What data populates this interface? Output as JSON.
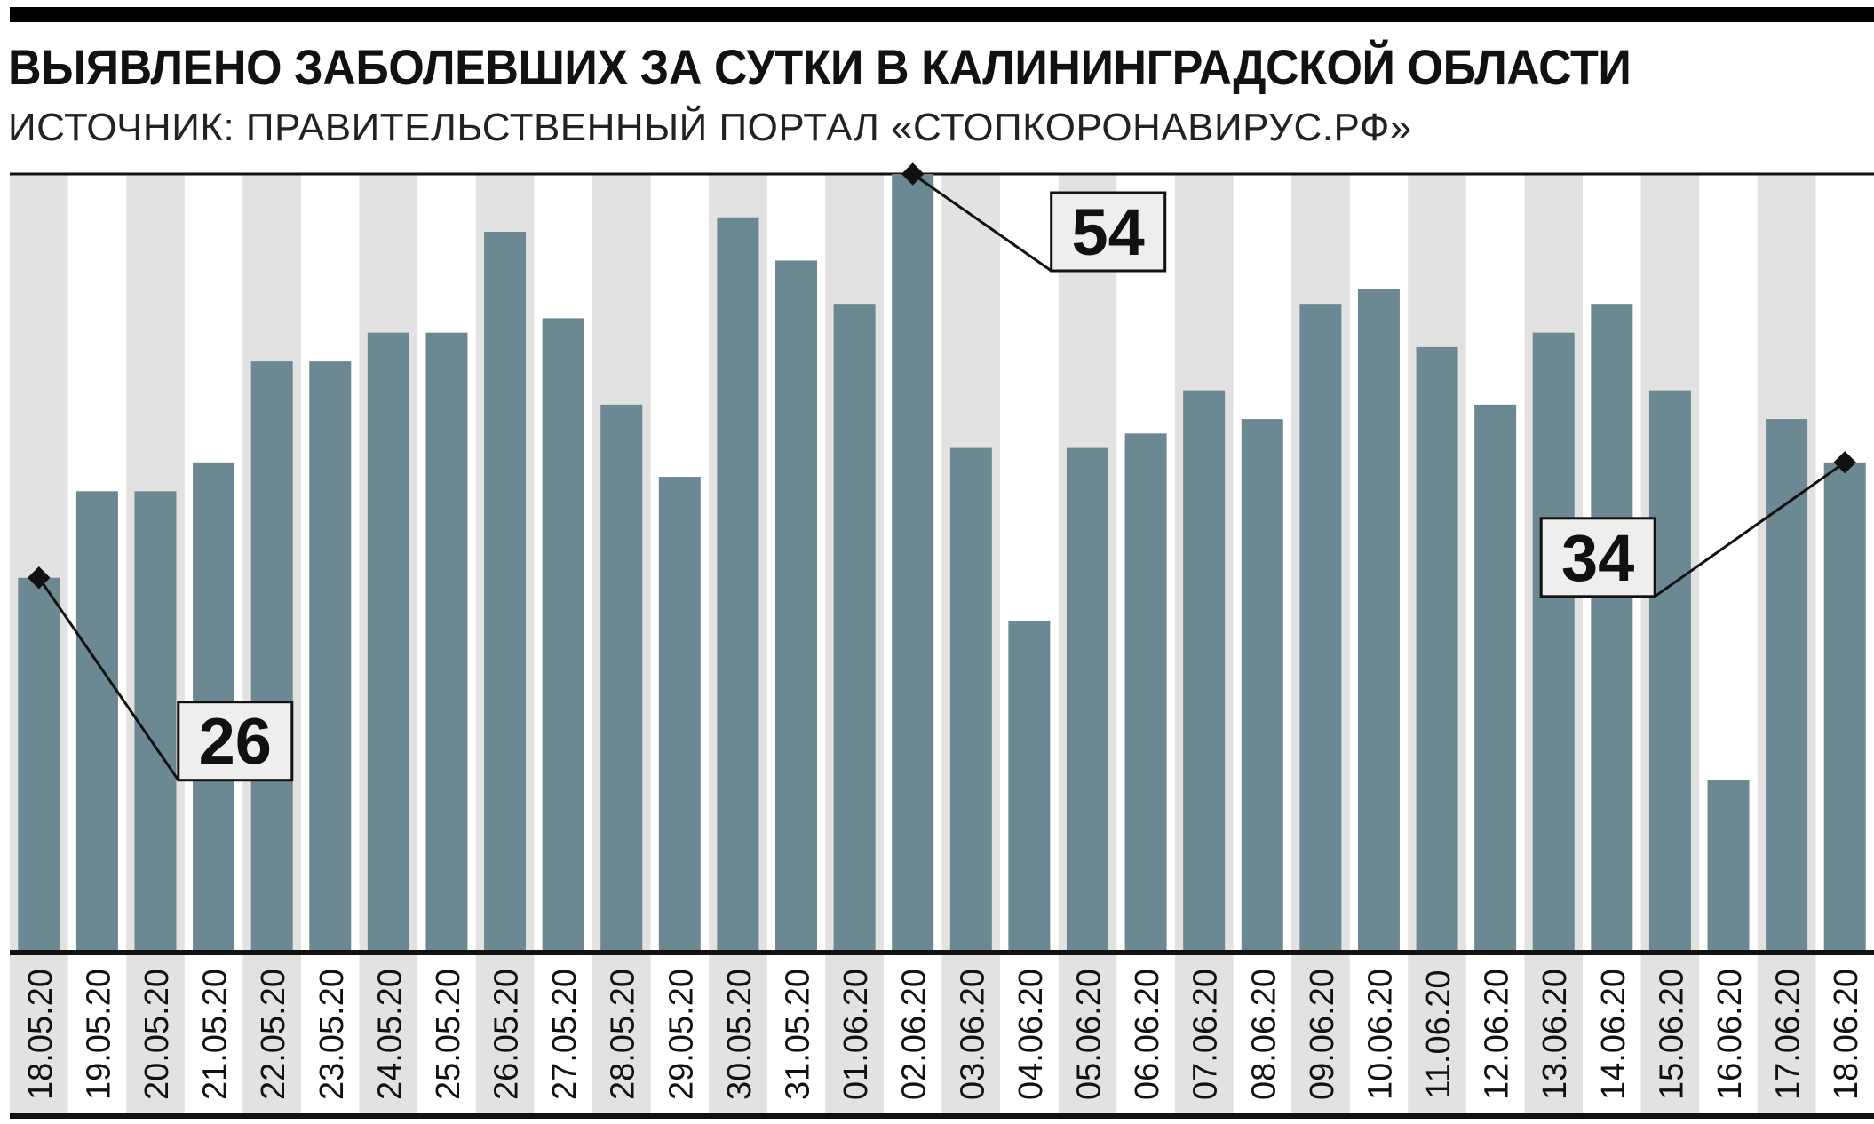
{
  "title_regular": "ВЫЯВЛЕНО ЗАБОЛЕВШИХ ЗА СУТКИ В",
  "title_bold": "КАЛИНИНГРАДСКОЙ ОБЛАСТИ",
  "subtitle": "ИСТОЧНИК: ПРАВИТЕЛЬСТВЕННЫЙ ПОРТАЛ «СТОПКОРОНАВИРУС.РФ»",
  "colors": {
    "bar": "#6b8893",
    "stripe": "#e2e2e2",
    "text": "#111111",
    "callout_bg": "#eeeeee"
  },
  "chart_data": {
    "type": "bar",
    "categories": [
      "18.05.20",
      "19.05.20",
      "20.05.20",
      "21.05.20",
      "22.05.20",
      "23.05.20",
      "24.05.20",
      "25.05.20",
      "26.05.20",
      "27.05.20",
      "28.05.20",
      "29.05.20",
      "30.05.20",
      "31.05.20",
      "01.06.20",
      "02.06.20",
      "03.06.20",
      "04.06.20",
      "05.06.20",
      "06.06.20",
      "07.06.20",
      "08.06.20",
      "09.06.20",
      "10.06.20",
      "11.06.20",
      "12.06.20",
      "13.06.20",
      "14.06.20",
      "15.06.20",
      "16.06.20",
      "17.06.20",
      "18.06.20"
    ],
    "values": [
      26,
      32,
      32,
      34,
      41,
      41,
      43,
      43,
      50,
      44,
      38,
      33,
      51,
      48,
      45,
      54,
      35,
      23,
      35,
      36,
      39,
      37,
      45,
      46,
      42,
      38,
      43,
      45,
      39,
      12,
      37,
      34
    ],
    "ylim": [
      0,
      54
    ],
    "grid": false,
    "tick_label_orientation": "vertical",
    "annotations": [
      {
        "category": "18.05.20",
        "label": "26"
      },
      {
        "category": "02.06.20",
        "label": "54"
      },
      {
        "category": "18.06.20",
        "label": "34"
      }
    ]
  }
}
